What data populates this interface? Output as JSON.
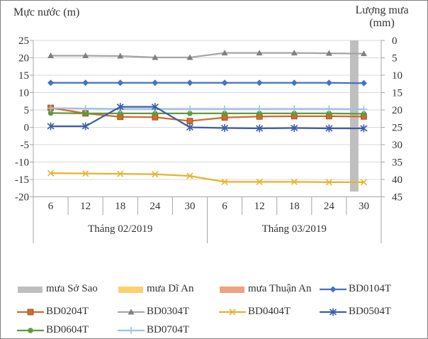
{
  "figure": {
    "background": "#FFFFFF",
    "border_color": "#808080",
    "text_color": "#333333",
    "gridline_color": "#D9D9D9",
    "axis_color": "#A6A6A6"
  },
  "chart_data": {
    "type": "combo (bar + line, dual axis)",
    "title_left": "Mực nước (m)",
    "title_right_line1": "Lượng mưa",
    "title_right_line2": "(mm)",
    "left_axis": {
      "label": "Mực nước (m)",
      "min": -20,
      "max": 25,
      "ticks": [
        25,
        20,
        15,
        10,
        5,
        0,
        -5,
        -10,
        -15,
        -20
      ]
    },
    "right_axis": {
      "label": "Lượng mưa (mm)",
      "min": 0,
      "max": 45,
      "inverted": true,
      "ticks": [
        0,
        5,
        10,
        15,
        20,
        25,
        30,
        35,
        40,
        45
      ]
    },
    "categories": [
      "6",
      "12",
      "18",
      "24",
      "30",
      "6",
      "12",
      "18",
      "24",
      "30"
    ],
    "month_groups": [
      {
        "label": "Tháng 02/2019",
        "span": 5
      },
      {
        "label": "Tháng 03/2019",
        "span": 5
      }
    ],
    "bar_series": [
      {
        "name": "mưa Sở Sao",
        "color": "#BFBFBF",
        "axis": "right_mm",
        "values": [
          0,
          0,
          0,
          0,
          0,
          0,
          0,
          0,
          0,
          43.5
        ]
      },
      {
        "name": "mưa Dĩ An",
        "color": "#FBD16E",
        "axis": "right_mm",
        "values": [
          0,
          0,
          0,
          0,
          0,
          0,
          0,
          0,
          0,
          0
        ]
      },
      {
        "name": "mưa Thuận An",
        "color": "#EDA283",
        "axis": "right_mm",
        "values": [
          0,
          0,
          0,
          0,
          0,
          0,
          0,
          0,
          0,
          0
        ]
      }
    ],
    "line_series": [
      {
        "name": "BD0104T",
        "color": "#4472C4",
        "marker": "diamond",
        "values": [
          12.8,
          12.8,
          12.8,
          12.8,
          12.8,
          12.8,
          12.8,
          12.8,
          12.8,
          12.7
        ]
      },
      {
        "name": "BD0204T",
        "color": "#D2692E",
        "marker": "square",
        "values": [
          5.6,
          4.0,
          3.0,
          2.9,
          1.8,
          2.8,
          3.1,
          3.2,
          3.2,
          3.1
        ]
      },
      {
        "name": "BD0304T",
        "color": "#A5A5A5",
        "marker": "triangle",
        "values": [
          20.6,
          20.6,
          20.5,
          20.1,
          20.1,
          21.4,
          21.4,
          21.4,
          21.3,
          21.2
        ]
      },
      {
        "name": "BD0404T",
        "color": "#E8B32A",
        "marker": "x",
        "values": [
          -13.2,
          -13.3,
          -13.4,
          -13.5,
          -14.0,
          -15.7,
          -15.7,
          -15.7,
          -15.8,
          -15.8
        ]
      },
      {
        "name": "BD0504T",
        "color": "#3A5EA8",
        "marker": "star",
        "values": [
          0.3,
          0.3,
          5.9,
          5.9,
          0.0,
          -0.2,
          -0.3,
          -0.2,
          -0.3,
          -0.3
        ]
      },
      {
        "name": "BD0604T",
        "color": "#62993E",
        "marker": "circle",
        "values": [
          4.1,
          4.0,
          4.0,
          4.0,
          4.0,
          4.0,
          4.0,
          4.0,
          4.0,
          3.9
        ]
      },
      {
        "name": "BD0704T",
        "color": "#9CC2E5",
        "marker": "plus",
        "values": [
          5.5,
          5.4,
          5.3,
          5.3,
          5.3,
          5.3,
          5.3,
          5.3,
          5.3,
          5.2
        ]
      }
    ],
    "legend_order": [
      "mưa Sở Sao",
      "mưa Dĩ An",
      "mưa Thuận An",
      "BD0104T",
      "BD0204T",
      "BD0304T",
      "BD0404T",
      "BD0504T",
      "BD0604T",
      "BD0704T"
    ],
    "legend_position": "bottom",
    "grid": true
  }
}
